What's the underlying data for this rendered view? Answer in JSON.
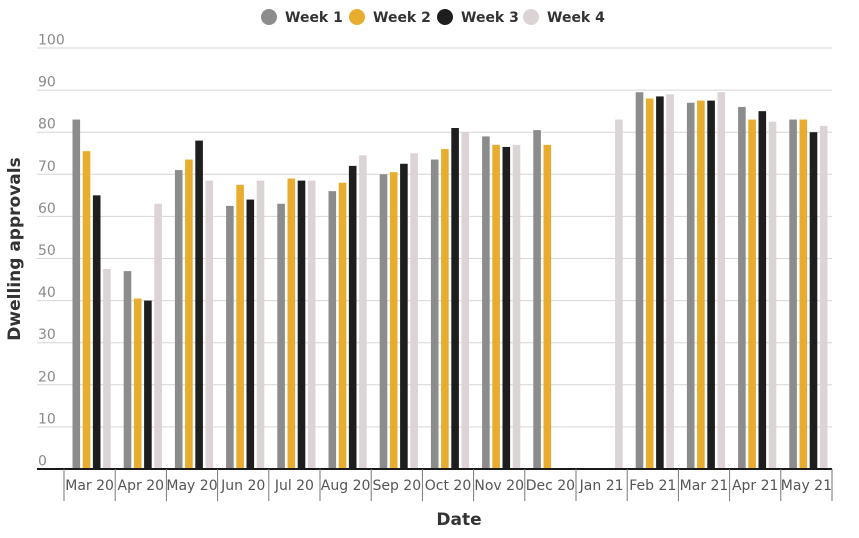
{
  "chart_data": {
    "type": "bar",
    "title": "",
    "xlabel": "Date",
    "ylabel": "Dwelling approvals",
    "ylim": [
      0,
      100
    ],
    "yticks": [
      0,
      10,
      20,
      30,
      40,
      50,
      60,
      70,
      80,
      90,
      100
    ],
    "grid": true,
    "legend_position": "top-center",
    "categories": [
      "Mar 20",
      "Apr 20",
      "May 20",
      "Jun 20",
      "Jul 20",
      "Aug 20",
      "Sep 20",
      "Oct 20",
      "Nov 20",
      "Dec 20",
      "Jan 21",
      "Feb 21",
      "Mar 21",
      "Apr 21",
      "May 21"
    ],
    "series": [
      {
        "name": "Week 1",
        "color": "#8c8c8c",
        "values": [
          83,
          47,
          71,
          62.5,
          63,
          66,
          70,
          73.5,
          79,
          80.5,
          null,
          89.5,
          87,
          86,
          83
        ]
      },
      {
        "name": "Week 2",
        "color": "#e8ac2f",
        "values": [
          75.5,
          40.5,
          73.5,
          67.5,
          69,
          68,
          70.5,
          76,
          77,
          77,
          null,
          88,
          87.5,
          83,
          83
        ]
      },
      {
        "name": "Week 3",
        "color": "#1e1e1e",
        "values": [
          65,
          40,
          78,
          64,
          68.5,
          72,
          72.5,
          81,
          76.5,
          null,
          null,
          88.5,
          87.5,
          85,
          80
        ]
      },
      {
        "name": "Week 4",
        "color": "#dcd3d5",
        "values": [
          47.5,
          63,
          68.5,
          68.5,
          68.5,
          74.5,
          75,
          80,
          77,
          null,
          83,
          89,
          89.5,
          82.5,
          81.5
        ]
      }
    ]
  }
}
